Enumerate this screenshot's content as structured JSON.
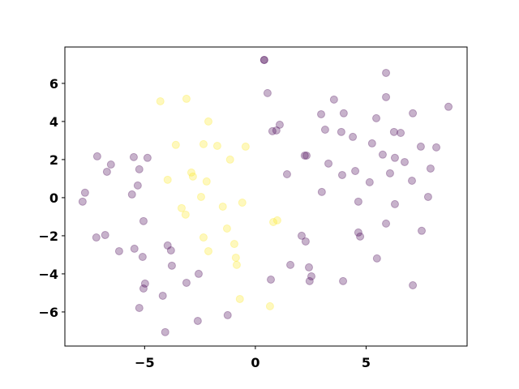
{
  "chart_data": {
    "type": "scatter",
    "xlim": [
      -8.6,
      9.56
    ],
    "ylim": [
      -7.79,
      7.91
    ],
    "xticks": [
      {
        "value": -5,
        "label": "−5"
      },
      0,
      5
    ],
    "yticks": [
      {
        "value": -6,
        "label": "−6"
      },
      {
        "value": -4,
        "label": "−4"
      },
      {
        "value": -2,
        "label": "−2"
      },
      0,
      2,
      4,
      6
    ],
    "series": [
      {
        "color": "#440154",
        "x": [
          0.4,
          0.4,
          0.55,
          -7.14,
          -6.52,
          -6.7,
          -7.69,
          -7.8,
          -5.49,
          -4.87,
          -5.24,
          -5.31,
          -5.57,
          -5.05,
          -7.18,
          -6.78,
          -6.15,
          -5.46,
          -5.09,
          -3.96,
          -3.81,
          -3.77,
          -4.98,
          -5.05,
          -3.11,
          -2.56,
          -4.18,
          -5.24,
          -4.07,
          -2.6,
          -1.25,
          0.77,
          0.95,
          1.1,
          1.43,
          2.23,
          2.31,
          2.09,
          2.27,
          1.58,
          0.7,
          2.42,
          2.53,
          2.45,
          2.97,
          3.15,
          3.55,
          3.3,
          3.99,
          3.88,
          4.4,
          3.0,
          3.92,
          4.51,
          4.65,
          3.96,
          4.65,
          4.73,
          5.16,
          5.27,
          5.46,
          5.75,
          5.9,
          5.9,
          6.08,
          6.3,
          6.26,
          6.56,
          6.74,
          6.3,
          5.9,
          5.49,
          7.11,
          7.07,
          7.47,
          7.91,
          8.17,
          7.51,
          7.8,
          8.72,
          7.11
        ],
        "values": [
          7.23,
          7.23,
          5.49,
          2.17,
          1.74,
          1.36,
          0.26,
          -0.21,
          2.13,
          2.09,
          1.49,
          0.64,
          0.17,
          -1.23,
          -2.09,
          -1.96,
          -2.81,
          -2.68,
          -3.11,
          -2.51,
          -2.77,
          -3.57,
          -4.51,
          -4.77,
          -4.47,
          -4.0,
          -5.15,
          -5.79,
          -7.06,
          -6.47,
          -6.17,
          3.49,
          3.53,
          3.83,
          1.23,
          2.21,
          2.21,
          -2.0,
          -2.3,
          -3.53,
          -4.3,
          -3.66,
          -4.13,
          -4.38,
          4.38,
          3.57,
          5.15,
          1.79,
          4.43,
          3.45,
          3.19,
          0.3,
          1.19,
          1.4,
          -0.21,
          -4.38,
          -1.83,
          -2.04,
          0.81,
          2.85,
          4.17,
          2.26,
          6.55,
          5.28,
          1.28,
          2.09,
          3.45,
          3.4,
          1.87,
          -0.34,
          -1.36,
          -3.19,
          4.43,
          0.89,
          2.68,
          1.53,
          2.64,
          -1.74,
          0.04,
          4.77,
          -4.6
        ]
      },
      {
        "color": "#fde725",
        "x": [
          -4.29,
          -3.11,
          -2.12,
          -3.59,
          -2.34,
          -1.72,
          -1.14,
          -0.44,
          -2.89,
          -2.82,
          -3.96,
          -2.2,
          -2.45,
          -0.59,
          -3.33,
          -3.15,
          -1.47,
          -1.28,
          -2.34,
          -0.95,
          -2.12,
          -0.88,
          -0.84,
          -0.7,
          0.81,
          0.99,
          0.66
        ],
        "values": [
          5.06,
          5.19,
          4.0,
          2.77,
          2.81,
          2.72,
          2.0,
          2.68,
          1.32,
          1.11,
          0.94,
          0.85,
          0.04,
          -0.26,
          -0.55,
          -0.89,
          -0.47,
          -1.62,
          -2.09,
          -2.43,
          -2.81,
          -3.15,
          -3.53,
          -5.32,
          -1.28,
          -1.19,
          -5.7
        ]
      }
    ]
  }
}
